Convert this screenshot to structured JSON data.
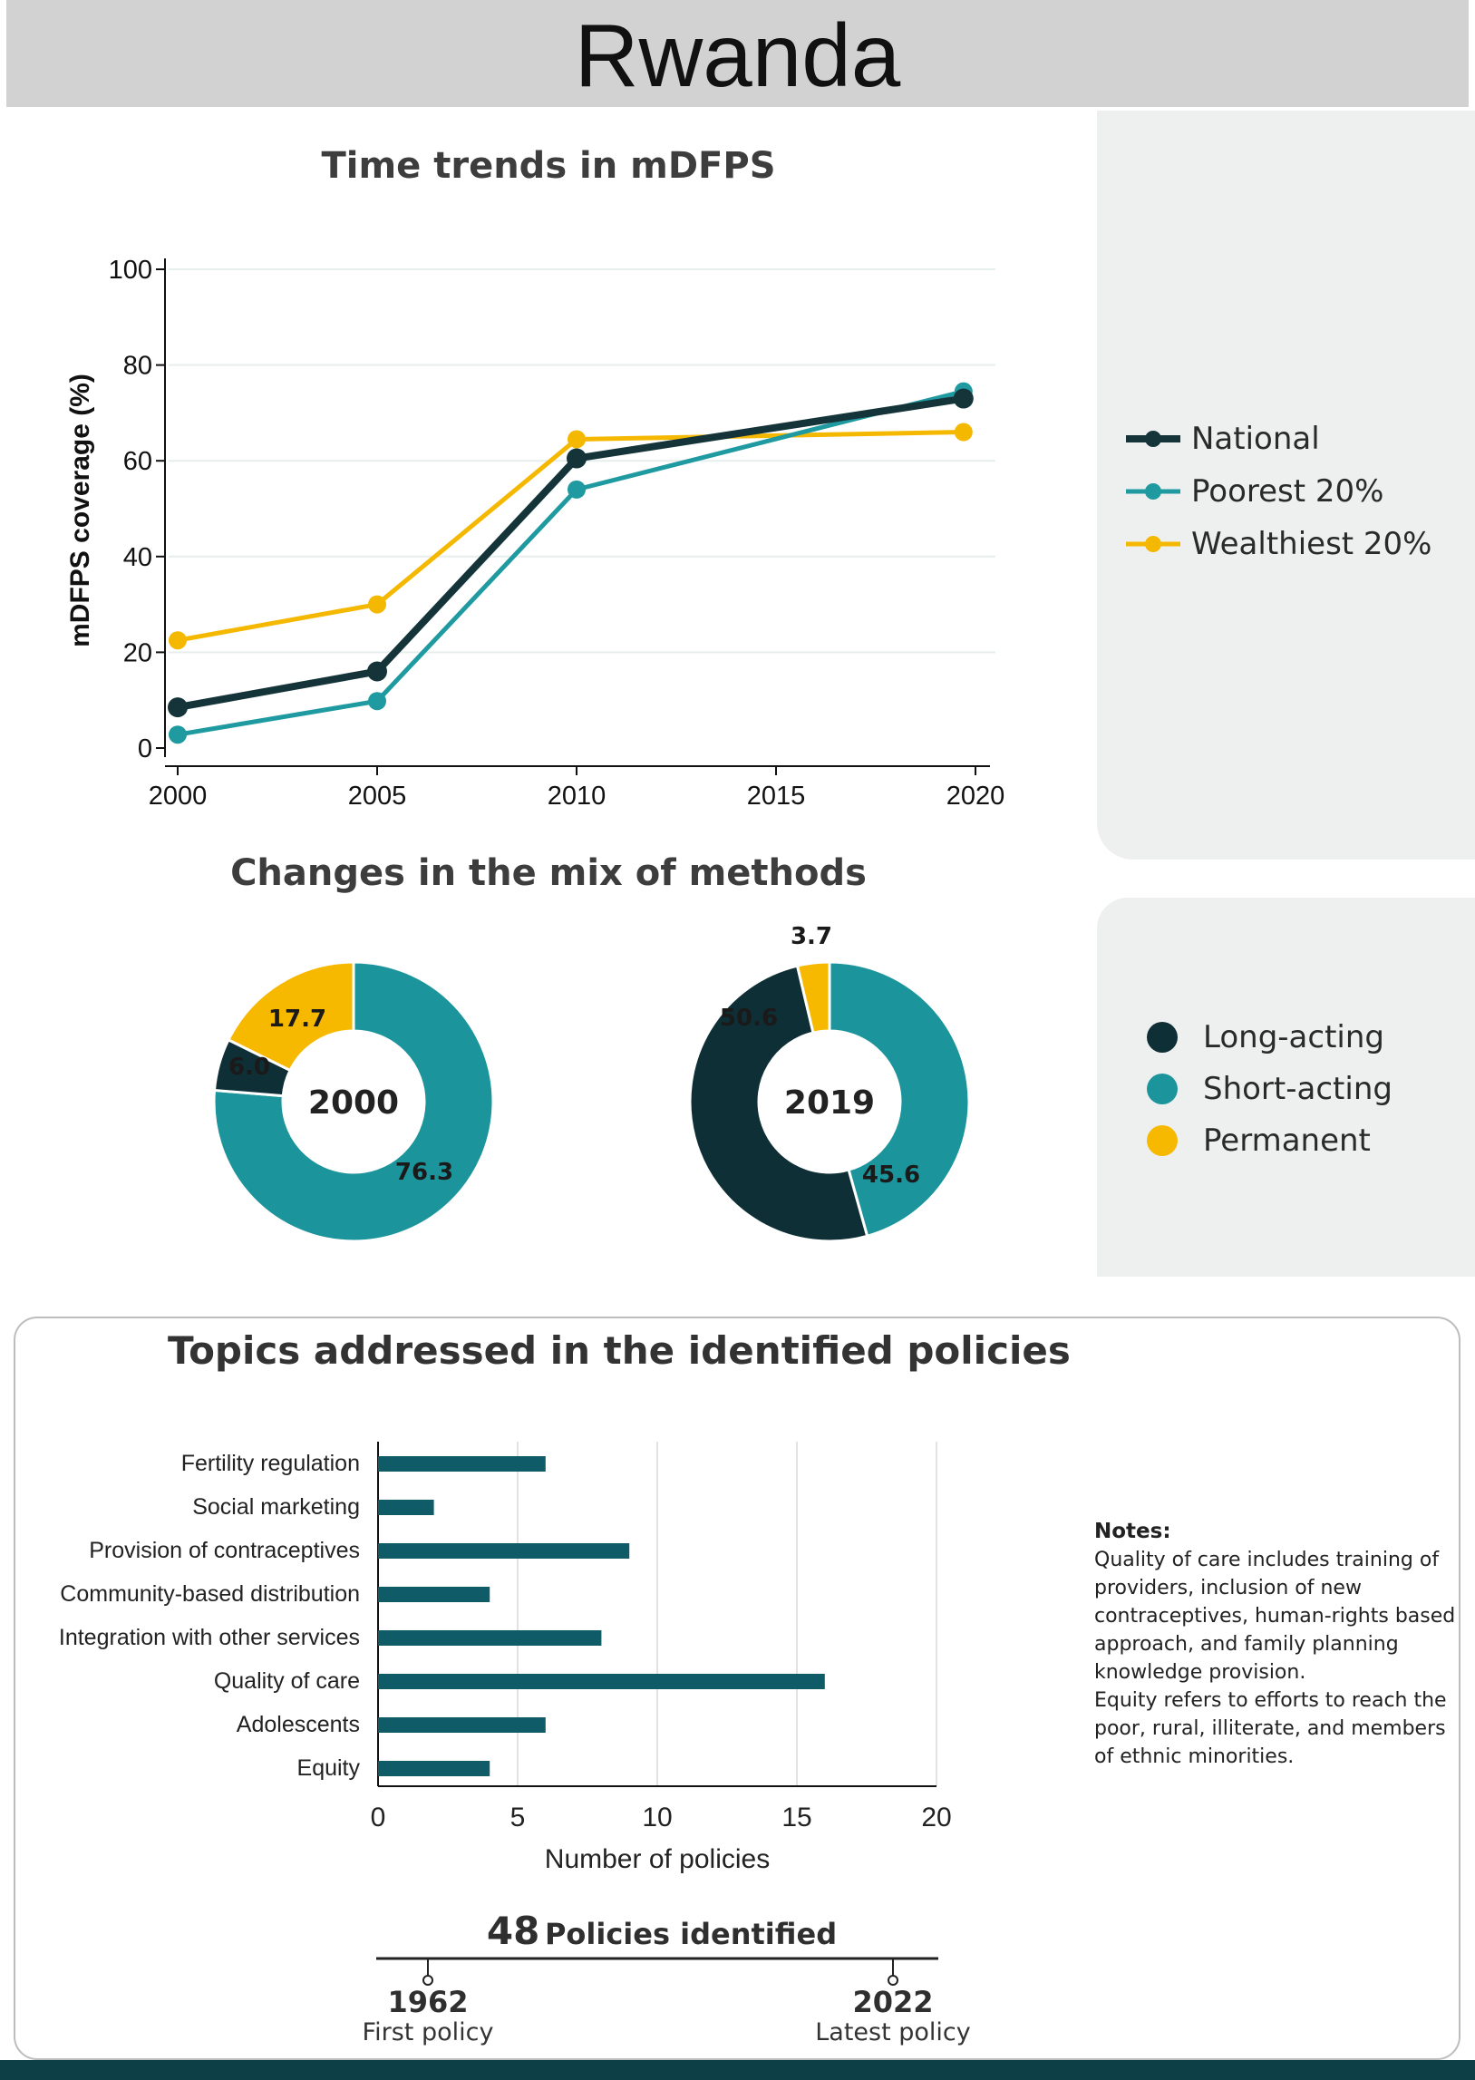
{
  "title": "Rwanda",
  "colors": {
    "national": "#14343a",
    "poorest": "#1f9aa0",
    "wealthiest": "#f5b800",
    "long_acting": "#0e2f36",
    "short_acting": "#1b949b",
    "permanent": "#f7b900",
    "bars": "#0f5c68"
  },
  "line_section": {
    "title": "Time trends in mDFPS"
  },
  "legend_lines": [
    {
      "label": "National",
      "color_key": "national"
    },
    {
      "label": "Poorest 20%",
      "color_key": "poorest"
    },
    {
      "label": "Wealthiest 20%",
      "color_key": "wealthiest"
    }
  ],
  "donut_section": {
    "title": "Changes in the mix of methods"
  },
  "legend_methods": [
    {
      "label": "Long-acting",
      "color_key": "long_acting"
    },
    {
      "label": "Short-acting",
      "color_key": "short_acting"
    },
    {
      "label": "Permanent",
      "color_key": "permanent"
    }
  ],
  "bar_section": {
    "title": "Topics addressed in the identified policies"
  },
  "notes": {
    "heading": "Notes:",
    "lines": [
      "Quality of care includes training of",
      "providers, inclusion of new",
      "contraceptives, human-rights based",
      "approach, and family planning",
      "knowledge provision.",
      "Equity refers to efforts to reach the",
      "poor, rural, illiterate, and members",
      "of ethnic minorities."
    ]
  },
  "policies": {
    "count": "48",
    "count_label": "Policies identified",
    "first_year": "1962",
    "first_label": "First policy",
    "latest_year": "2022",
    "latest_label": "Latest policy"
  },
  "chart_data": [
    {
      "type": "line",
      "title": "Time trends in mDFPS",
      "xlabel": "",
      "ylabel": "mDFPS coverage (%)",
      "xlim": [
        2000,
        2020
      ],
      "ylim": [
        0,
        100
      ],
      "xticks": [
        2000,
        2005,
        2010,
        2015,
        2020
      ],
      "yticks": [
        0,
        20,
        40,
        60,
        80,
        100
      ],
      "grid": true,
      "series": [
        {
          "name": "Wealthiest 20%",
          "color_key": "wealthiest",
          "x": [
            2000,
            2005,
            2010,
            2019.7
          ],
          "y": [
            22.5,
            30,
            64.5,
            66
          ]
        },
        {
          "name": "Poorest 20%",
          "color_key": "poorest",
          "x": [
            2000,
            2005,
            2010,
            2019.7
          ],
          "y": [
            2.8,
            9.8,
            54,
            74.5
          ]
        },
        {
          "name": "National",
          "color_key": "national",
          "x": [
            2000,
            2005,
            2010,
            2019.7
          ],
          "y": [
            8.5,
            16,
            60.5,
            73
          ]
        }
      ]
    },
    {
      "type": "pie",
      "title": "2000",
      "center_label": "2000",
      "slices": [
        {
          "name": "Short-acting",
          "value": 76.3,
          "label": "76.3",
          "color_key": "short_acting"
        },
        {
          "name": "Long-acting",
          "value": 6.0,
          "label": "6.0",
          "color_key": "long_acting"
        },
        {
          "name": "Permanent",
          "value": 17.7,
          "label": "17.7",
          "color_key": "permanent"
        }
      ]
    },
    {
      "type": "pie",
      "title": "2019",
      "center_label": "2019",
      "slices": [
        {
          "name": "Short-acting",
          "value": 45.6,
          "label": "45.6",
          "color_key": "short_acting"
        },
        {
          "name": "Long-acting",
          "value": 50.6,
          "label": "50.6",
          "color_key": "long_acting"
        },
        {
          "name": "Permanent",
          "value": 3.7,
          "label": "3.7",
          "color_key": "permanent"
        }
      ]
    },
    {
      "type": "bar",
      "orientation": "horizontal",
      "title": "Topics addressed in the identified policies",
      "xlabel": "Number of policies",
      "xlim": [
        0,
        20
      ],
      "xticks": [
        0,
        5,
        10,
        15,
        20
      ],
      "categories": [
        "Fertility regulation",
        "Social marketing",
        "Provision of contraceptives",
        "Community-based distribution",
        "Integration with other services",
        "Quality of care",
        "Adolescents",
        "Equity"
      ],
      "values": [
        6,
        2,
        9,
        4,
        8,
        16,
        6,
        4
      ]
    }
  ]
}
